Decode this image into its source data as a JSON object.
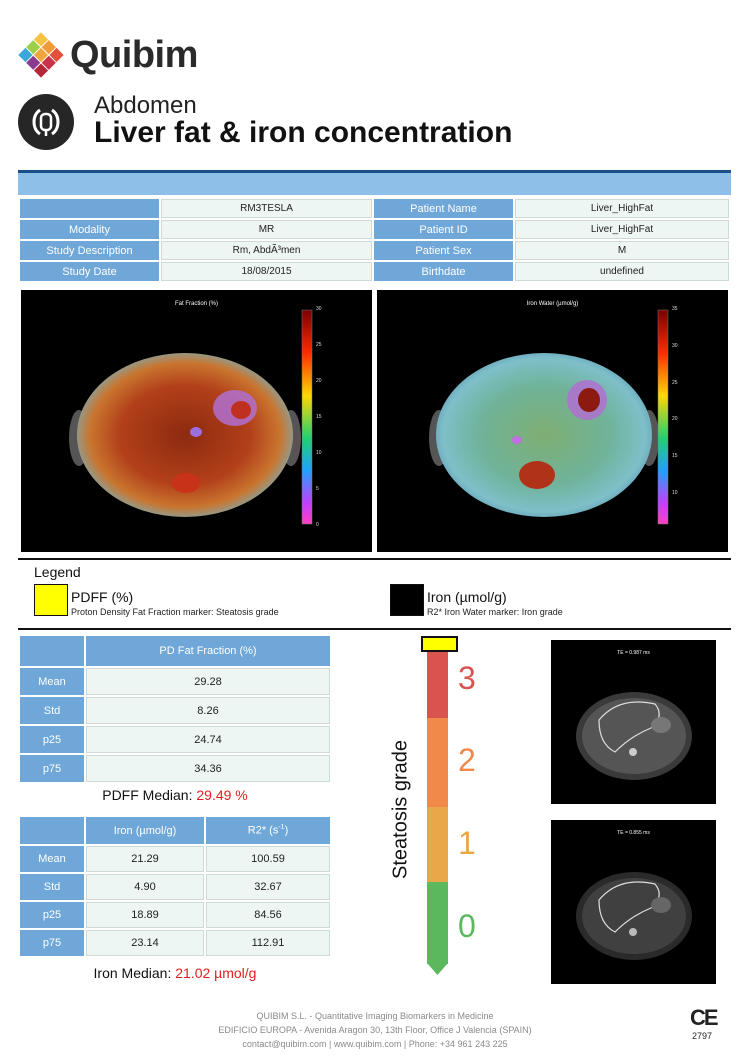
{
  "header": {
    "logo_text": "Quibim",
    "section": "Abdomen",
    "title": "Liver fat & iron concentration"
  },
  "info": {
    "rows": [
      {
        "l1": "",
        "v1": "RM3TESLA",
        "l2": "Patient Name",
        "v2": "Liver_HighFat"
      },
      {
        "l1": "Modality",
        "v1": "MR",
        "l2": "Patient ID",
        "v2": "Liver_HighFat"
      },
      {
        "l1": "Study Description",
        "v1": "Rm, AbdÃ³men",
        "l2": "Patient Sex",
        "v2": "M"
      },
      {
        "l1": "Study Date",
        "v1": "18/08/2015",
        "l2": "Birthdate",
        "v2": "undefined"
      }
    ]
  },
  "maps": {
    "fat": {
      "title": "Fat Fraction (%)",
      "scale": [
        "30",
        "25",
        "20",
        "15",
        "10",
        "5",
        "0"
      ]
    },
    "iron": {
      "title": "Iron Water (µmol/g)",
      "scale": [
        "35",
        "30",
        "25",
        "20",
        "15",
        "10"
      ]
    }
  },
  "legend": {
    "title": "Legend",
    "pdff": {
      "name": "PDFF (%)",
      "desc": "Proton Density Fat Fraction marker: Steatosis grade",
      "color": "#ffff00"
    },
    "iron": {
      "name": "Iron (µmol/g)",
      "desc": "R2* Iron Water marker: Iron grade",
      "color": "#000000"
    }
  },
  "pdff_table": {
    "header": "PD Fat Fraction (%)",
    "rows": [
      {
        "label": "Mean",
        "value": "29.28"
      },
      {
        "label": "Std",
        "value": "8.26"
      },
      {
        "label": "p25",
        "value": "24.74"
      },
      {
        "label": "p75",
        "value": "34.36"
      }
    ],
    "median_label": "PDFF Median:",
    "median_value": "29.49 %"
  },
  "iron_table": {
    "header1": "Iron (µmol/g)",
    "header2": "R2* (s",
    "header2_sup": "-1",
    "header2_end": ")",
    "rows": [
      {
        "label": "Mean",
        "iron": "21.29",
        "r2": "100.59"
      },
      {
        "label": "Std",
        "iron": "4.90",
        "r2": "32.67"
      },
      {
        "label": "p25",
        "iron": "18.89",
        "r2": "84.56"
      },
      {
        "label": "p75",
        "iron": "23.14",
        "r2": "112.91"
      }
    ],
    "median_label": "Iron Median:",
    "median_value": "21.02 µmol/g"
  },
  "grade": {
    "label": "Steatosis grade",
    "levels": [
      {
        "num": "3",
        "color": "#d9534f"
      },
      {
        "num": "2",
        "color": "#f0894a"
      },
      {
        "num": "1",
        "color": "#e8a84a"
      },
      {
        "num": "0",
        "color": "#5cb85c"
      }
    ],
    "marker_color": "#ffff00"
  },
  "te_images": [
    {
      "label": "TE = 0.987 ms"
    },
    {
      "label": "TE = 0.855 ms"
    }
  ],
  "footer": {
    "line1": "QUIBIM S.L. - Quantitative Imaging Biomarkers in Medicine",
    "line2": "EDIFICIO EUROPA - Avenida Aragon 30, 13th Floor, Office J Valencia (SPAIN)",
    "line3": "contact@quibim.com  |  www.quibim.com  |    Phone: +34 961 243 225",
    "ce_mark": "CE",
    "ce_number": "2797"
  }
}
